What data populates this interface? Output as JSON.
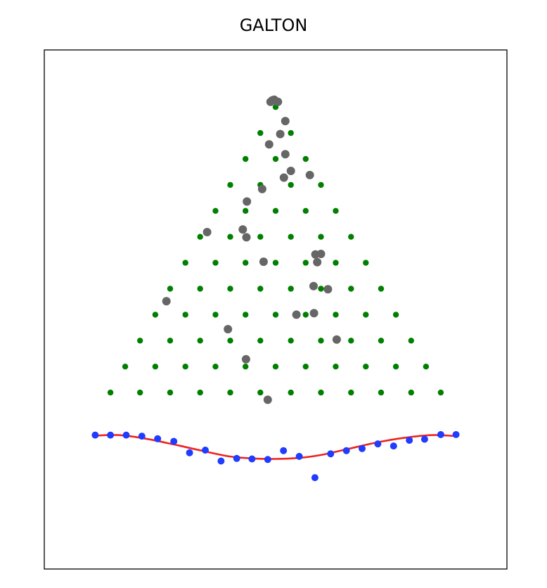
{
  "chart_data": {
    "type": "scatter",
    "title": "GALTON",
    "xlabel": "",
    "ylabel": "",
    "ticks_visible": false,
    "grid": false,
    "xlim": [
      0,
      100
    ],
    "ylim": [
      0,
      100
    ],
    "colors": {
      "pegs": "#008000",
      "balls": "#666666",
      "bins": "#1f3cff",
      "curve": "#ee2222",
      "frame": "#000000"
    },
    "series": [
      {
        "values": [
          [
            50.0,
            89.0
          ],
          [
            46.7,
            84.0
          ],
          [
            53.3,
            84.0
          ],
          [
            43.5,
            79.0
          ],
          [
            50.0,
            79.0
          ],
          [
            56.5,
            79.0
          ],
          [
            40.2,
            74.0
          ],
          [
            46.7,
            74.0
          ],
          [
            53.3,
            74.0
          ],
          [
            59.8,
            74.0
          ],
          [
            37.0,
            69.0
          ],
          [
            43.5,
            69.0
          ],
          [
            50.0,
            69.0
          ],
          [
            56.5,
            69.0
          ],
          [
            63.0,
            69.0
          ],
          [
            33.7,
            64.0
          ],
          [
            40.2,
            64.0
          ],
          [
            46.7,
            64.0
          ],
          [
            53.3,
            64.0
          ],
          [
            59.8,
            64.0
          ],
          [
            66.3,
            64.0
          ],
          [
            30.5,
            59.0
          ],
          [
            37.0,
            59.0
          ],
          [
            43.5,
            59.0
          ],
          [
            50.0,
            59.0
          ],
          [
            56.5,
            59.0
          ],
          [
            63.0,
            59.0
          ],
          [
            69.5,
            59.0
          ],
          [
            27.2,
            54.0
          ],
          [
            33.7,
            54.0
          ],
          [
            40.2,
            54.0
          ],
          [
            46.7,
            54.0
          ],
          [
            53.3,
            54.0
          ],
          [
            59.8,
            54.0
          ],
          [
            66.3,
            54.0
          ],
          [
            72.8,
            54.0
          ],
          [
            24.0,
            49.0
          ],
          [
            30.5,
            49.0
          ],
          [
            37.0,
            49.0
          ],
          [
            43.5,
            49.0
          ],
          [
            50.0,
            49.0
          ],
          [
            56.5,
            49.0
          ],
          [
            63.0,
            49.0
          ],
          [
            69.5,
            49.0
          ],
          [
            76.0,
            49.0
          ],
          [
            20.7,
            44.0
          ],
          [
            27.2,
            44.0
          ],
          [
            33.7,
            44.0
          ],
          [
            40.2,
            44.0
          ],
          [
            46.7,
            44.0
          ],
          [
            53.3,
            44.0
          ],
          [
            59.8,
            44.0
          ],
          [
            66.3,
            44.0
          ],
          [
            72.8,
            44.0
          ],
          [
            79.3,
            44.0
          ],
          [
            17.5,
            39.0
          ],
          [
            24.0,
            39.0
          ],
          [
            30.5,
            39.0
          ],
          [
            37.0,
            39.0
          ],
          [
            43.5,
            39.0
          ],
          [
            50.0,
            39.0
          ],
          [
            56.5,
            39.0
          ],
          [
            63.0,
            39.0
          ],
          [
            69.5,
            39.0
          ],
          [
            76.0,
            39.0
          ],
          [
            82.5,
            39.0
          ],
          [
            14.3,
            34.0
          ],
          [
            20.7,
            34.0
          ],
          [
            27.2,
            34.0
          ],
          [
            33.7,
            34.0
          ],
          [
            40.2,
            34.0
          ],
          [
            46.7,
            34.0
          ],
          [
            53.3,
            34.0
          ],
          [
            59.8,
            34.0
          ],
          [
            66.3,
            34.0
          ],
          [
            72.8,
            34.0
          ],
          [
            79.3,
            34.0
          ],
          [
            85.7,
            34.0
          ]
        ]
      },
      {
        "values": [
          [
            48.9,
            90.0
          ],
          [
            49.7,
            90.4
          ],
          [
            50.5,
            90.0
          ],
          [
            49.3,
            90.3
          ],
          [
            52.1,
            86.3
          ],
          [
            51.0,
            83.8
          ],
          [
            48.6,
            81.8
          ],
          [
            52.1,
            79.9
          ],
          [
            53.3,
            76.7
          ],
          [
            51.8,
            75.4
          ],
          [
            57.4,
            75.9
          ],
          [
            47.1,
            73.2
          ],
          [
            43.8,
            70.8
          ],
          [
            35.2,
            64.9
          ],
          [
            42.9,
            65.4
          ],
          [
            43.7,
            63.9
          ],
          [
            58.6,
            60.6
          ],
          [
            59.8,
            60.7
          ],
          [
            47.4,
            59.2
          ],
          [
            59.0,
            59.1
          ],
          [
            58.2,
            54.5
          ],
          [
            61.3,
            53.9
          ],
          [
            26.4,
            51.6
          ],
          [
            58.3,
            49.3
          ],
          [
            54.5,
            49.0
          ],
          [
            39.7,
            46.2
          ],
          [
            63.2,
            44.2
          ],
          [
            43.6,
            40.4
          ],
          [
            48.3,
            32.6
          ]
        ]
      },
      {
        "values": [
          [
            11.0,
            25.8
          ],
          [
            14.3,
            25.8
          ],
          [
            17.7,
            25.8
          ],
          [
            21.1,
            25.6
          ],
          [
            24.5,
            25.1
          ],
          [
            28.0,
            24.6
          ],
          [
            31.4,
            22.4
          ],
          [
            34.8,
            22.9
          ],
          [
            38.2,
            20.8
          ],
          [
            41.6,
            21.3
          ],
          [
            44.9,
            21.2
          ],
          [
            48.3,
            21.1
          ],
          [
            51.7,
            22.8
          ],
          [
            55.1,
            21.7
          ],
          [
            58.5,
            17.6
          ],
          [
            61.9,
            22.2
          ],
          [
            65.3,
            22.8
          ],
          [
            68.7,
            23.2
          ],
          [
            72.1,
            24.1
          ],
          [
            75.5,
            23.7
          ],
          [
            78.9,
            24.8
          ],
          [
            82.2,
            25.0
          ],
          [
            85.7,
            25.9
          ],
          [
            89.0,
            25.9
          ]
        ]
      },
      {
        "values": [
          [
            11.0,
            25.7
          ],
          [
            16.0,
            25.8
          ],
          [
            22.0,
            25.1
          ],
          [
            28.0,
            24.0
          ],
          [
            34.0,
            22.8
          ],
          [
            40.0,
            21.7
          ],
          [
            45.0,
            21.3
          ],
          [
            50.0,
            21.2
          ],
          [
            55.0,
            21.4
          ],
          [
            60.0,
            22.0
          ],
          [
            66.0,
            23.2
          ],
          [
            72.0,
            24.4
          ],
          [
            78.0,
            25.3
          ],
          [
            84.0,
            25.8
          ],
          [
            89.0,
            25.6
          ]
        ]
      }
    ]
  }
}
